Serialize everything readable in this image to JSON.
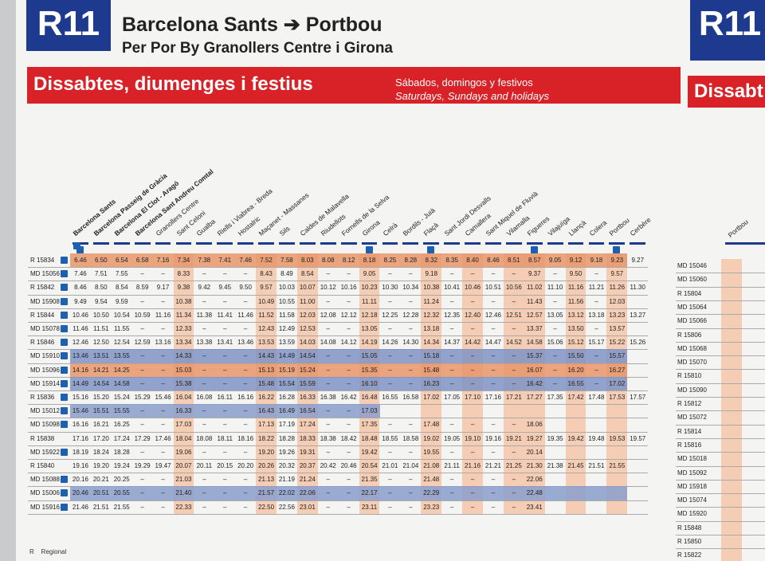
{
  "header": {
    "line": "R11",
    "origin": "Barcelona Sants",
    "destination": "Portbou",
    "via_prefix": "Per Por By",
    "via": "Granollers Centre i Girona"
  },
  "band": {
    "title": "Dissabtes, diumenges i festius",
    "es": "Sábados, domingos y festivos",
    "en": "Saturdays, Sundays and holidays"
  },
  "table": {
    "stations": [
      "Barcelona Sants",
      "Barcelona Passeig de Gràcia",
      "Barcelona El Clot - Aragó",
      "Barcelona Sant Andreu Comtal",
      "Granollers Centre",
      "Sant Celoni",
      "Gualba",
      "Riells i Viabrea - Breda",
      "Hostalric",
      "Maçanet - Massanes",
      "Sils",
      "Caldes de Malavella",
      "Riudellots",
      "Fornells de la Selva",
      "Girona",
      "Celrà",
      "Bordils - Juià",
      "Flaçà",
      "Sant Jordi Desvalls",
      "Camallera",
      "Sant Miquel de Fluvià",
      "Vilamalla",
      "Figueres",
      "Vilajuïga",
      "Llançà",
      "Colera",
      "Portbou",
      "Cerbère"
    ],
    "rows": [
      {
        "train": "R 15834",
        "times": [
          "6.46",
          "6.50",
          "6.54",
          "6.58",
          "7.16",
          "7.34",
          "7.38",
          "7.41",
          "7.46",
          "7.52",
          "7.58",
          "8.03",
          "8.08",
          "8.12",
          "8.18",
          "8.25",
          "8.28",
          "8.32",
          "8.35",
          "8.40",
          "8.46",
          "8.51",
          "8.57",
          "9.05",
          "9.12",
          "9.18",
          "9.23",
          "9.27"
        ]
      },
      {
        "train": "MD 15056",
        "times": [
          "7.46",
          "7.51",
          "7.55",
          "–",
          "–",
          "8.33",
          "–",
          "–",
          "–",
          "8.43",
          "8.49",
          "8.54",
          "–",
          "–",
          "9.05",
          "–",
          "–",
          "9.18",
          "–",
          "–",
          "–",
          "–",
          "9.37",
          "–",
          "9.50",
          "–",
          "9.57",
          null
        ]
      },
      {
        "train": "R 15842",
        "times": [
          "8.46",
          "8.50",
          "8.54",
          "8.59",
          "9.17",
          "9.38",
          "9.42",
          "9.45",
          "9.50",
          "9.57",
          "10.03",
          "10.07",
          "10.12",
          "10.16",
          "10.23",
          "10.30",
          "10.34",
          "10.38",
          "10.41",
          "10.46",
          "10.51",
          "10.56",
          "11.02",
          "11.10",
          "11.16",
          "11.21",
          "11.26",
          "11.30"
        ]
      },
      {
        "train": "MD 15908",
        "times": [
          "9.49",
          "9.54",
          "9.59",
          "–",
          "–",
          "10.38",
          "–",
          "–",
          "–",
          "10.49",
          "10.55",
          "11.00",
          "–",
          "–",
          "11.11",
          "–",
          "–",
          "11.24",
          "–",
          "–",
          "–",
          "–",
          "11.43",
          "–",
          "11.56",
          "–",
          "12.03",
          null
        ]
      },
      {
        "train": "R 15844",
        "times": [
          "10.46",
          "10.50",
          "10.54",
          "10.59",
          "11.16",
          "11.34",
          "11.38",
          "11.41",
          "11.46",
          "11.52",
          "11.58",
          "12.03",
          "12.08",
          "12.12",
          "12.18",
          "12.25",
          "12.28",
          "12.32",
          "12.35",
          "12.40",
          "12.46",
          "12.51",
          "12.57",
          "13.05",
          "13.12",
          "13.18",
          "13.23",
          "13.27"
        ]
      },
      {
        "train": "MD 15078",
        "times": [
          "11.46",
          "11.51",
          "11.55",
          "–",
          "–",
          "12.33",
          "–",
          "–",
          "–",
          "12.43",
          "12.49",
          "12.53",
          "–",
          "–",
          "13.05",
          "–",
          "–",
          "13.18",
          "–",
          "–",
          "–",
          "–",
          "13.37",
          "–",
          "13.50",
          "–",
          "13.57",
          null
        ]
      },
      {
        "train": "R 15846",
        "times": [
          "12.46",
          "12.50",
          "12.54",
          "12.59",
          "13.16",
          "13.34",
          "13.38",
          "13.41",
          "13.46",
          "13.53",
          "13.59",
          "14.03",
          "14.08",
          "14.12",
          "14.19",
          "14.26",
          "14.30",
          "14.34",
          "14.37",
          "14.42",
          "14.47",
          "14.52",
          "14.58",
          "15.06",
          "15.12",
          "15.17",
          "15.22",
          "15.26"
        ]
      },
      {
        "train": "MD 15910",
        "times": [
          "13.46",
          "13.51",
          "13.55",
          "–",
          "–",
          "14.33",
          "–",
          "–",
          "–",
          "14.43",
          "14.49",
          "14.54",
          "–",
          "–",
          "15.05",
          "–",
          "–",
          "15.18",
          "–",
          "–",
          "–",
          "–",
          "15.37",
          "–",
          "15.50",
          "–",
          "15.57",
          null
        ]
      },
      {
        "train": "MD 15096",
        "times": [
          "14.16",
          "14.21",
          "14.25",
          "–",
          "–",
          "15.03",
          "–",
          "–",
          "–",
          "15.13",
          "15.19",
          "15.24",
          "–",
          "–",
          "15.35",
          "–",
          "–",
          "15.48",
          "–",
          "–",
          "–",
          "–",
          "16.07",
          "–",
          "16.20",
          "–",
          "16.27",
          null
        ]
      },
      {
        "train": "MD 15914",
        "times": [
          "14.49",
          "14.54",
          "14.58",
          "–",
          "–",
          "15.38",
          "–",
          "–",
          "–",
          "15.48",
          "15.54",
          "15.59",
          "–",
          "–",
          "16.10",
          "–",
          "–",
          "16.23",
          "–",
          "–",
          "–",
          "–",
          "16.42",
          "–",
          "16.55",
          "–",
          "17.02",
          null
        ]
      },
      {
        "train": "R 15836",
        "times": [
          "15.16",
          "15.20",
          "15.24",
          "15.29",
          "15.46",
          "16.04",
          "16.08",
          "16.11",
          "16.16",
          "16.22",
          "16.28",
          "16.33",
          "16.38",
          "16.42",
          "16.48",
          "16.55",
          "16.58",
          "17.02",
          "17.05",
          "17.10",
          "17.16",
          "17.21",
          "17.27",
          "17.35",
          "17.42",
          "17.48",
          "17.53",
          "17.57"
        ]
      },
      {
        "train": "MD 15012",
        "times": [
          "15.46",
          "15.51",
          "15.55",
          "–",
          "–",
          "16.33",
          "–",
          "–",
          "–",
          "16.43",
          "16.49",
          "16.54",
          "–",
          "–",
          "17.03",
          null,
          null,
          null,
          null,
          null,
          null,
          null,
          null,
          null,
          null,
          null,
          null,
          null
        ]
      },
      {
        "train": "MD 15098",
        "times": [
          "16.16",
          "16.21",
          "16.25",
          "–",
          "–",
          "17.03",
          "–",
          "–",
          "–",
          "17.13",
          "17.19",
          "17.24",
          "–",
          "–",
          "17.35",
          "–",
          "–",
          "17.48",
          "–",
          "–",
          "–",
          "–",
          "18.06",
          null,
          null,
          null,
          null,
          null
        ]
      },
      {
        "train": "R 15838",
        "times": [
          "17.16",
          "17.20",
          "17.24",
          "17.29",
          "17.46",
          "18.04",
          "18.08",
          "18.11",
          "18.16",
          "18.22",
          "18.28",
          "18.33",
          "18.38",
          "18.42",
          "18.48",
          "18.55",
          "18.58",
          "19.02",
          "19.05",
          "19.10",
          "19.16",
          "19.21",
          "19.27",
          "19.35",
          "19.42",
          "19.48",
          "19.53",
          "19.57"
        ]
      },
      {
        "train": "MD 15922",
        "times": [
          "18.19",
          "18.24",
          "18.28",
          "–",
          "–",
          "19.06",
          "–",
          "–",
          "–",
          "19.20",
          "19.26",
          "19.31",
          "–",
          "–",
          "19.42",
          "–",
          "–",
          "19.55",
          "–",
          "–",
          "–",
          "–",
          "20.14",
          null,
          null,
          null,
          null,
          null
        ]
      },
      {
        "train": "R 15840",
        "times": [
          "19.16",
          "19.20",
          "19.24",
          "19.29",
          "19.47",
          "20.07",
          "20.11",
          "20.15",
          "20.20",
          "20.26",
          "20.32",
          "20.37",
          "20.42",
          "20.46",
          "20.54",
          "21.01",
          "21.04",
          "21.08",
          "21.11",
          "21.16",
          "21.21",
          "21.25",
          "21.30",
          "21.38",
          "21.45",
          "21.51",
          "21.55",
          null
        ]
      },
      {
        "train": "MD 15088",
        "times": [
          "20.16",
          "20.21",
          "20.25",
          "–",
          "–",
          "21.03",
          "–",
          "–",
          "–",
          "21.13",
          "21.19",
          "21.24",
          "–",
          "–",
          "21.35",
          "–",
          "–",
          "21.48",
          "–",
          "–",
          "–",
          "–",
          "22.06",
          null,
          null,
          null,
          null,
          null
        ]
      },
      {
        "train": "MD 15006",
        "times": [
          "20.46",
          "20.51",
          "20.55",
          "–",
          "–",
          "21.40",
          "–",
          "–",
          "–",
          "21.57",
          "22.02",
          "22.06",
          "–",
          "–",
          "22.17",
          "–",
          "–",
          "22.29",
          "–",
          "–",
          "–",
          "–",
          "22.48",
          null,
          null,
          null,
          null,
          null
        ]
      },
      {
        "train": "MD 15916",
        "times": [
          "21.46",
          "21.51",
          "21.55",
          "–",
          "–",
          "22.33",
          "–",
          "–",
          "–",
          "22.50",
          "22.56",
          "23.01",
          "–",
          "–",
          "23.11",
          "–",
          "–",
          "23.23",
          "–",
          "–",
          "–",
          "–",
          "23.41",
          null,
          null,
          null,
          null,
          null
        ]
      }
    ]
  },
  "legend": {
    "code": "R",
    "label": "Regional"
  },
  "next_panel": {
    "line": "R11",
    "band_title": "Dissabt",
    "station": "Portbou",
    "trains": [
      "MD 15046",
      "MD 15060",
      "R 15804",
      "MD 15064",
      "MD 15066",
      "R 15806",
      "MD 15068",
      "MD 15070",
      "R 15810",
      "MD 15090",
      "R 15812",
      "MD 15072",
      "R 15814",
      "R 15816",
      "MD 15018",
      "MD 15092",
      "MD 15918",
      "MD 15074",
      "MD 15920",
      "R 15848",
      "R 15850",
      "R 15822"
    ]
  }
}
